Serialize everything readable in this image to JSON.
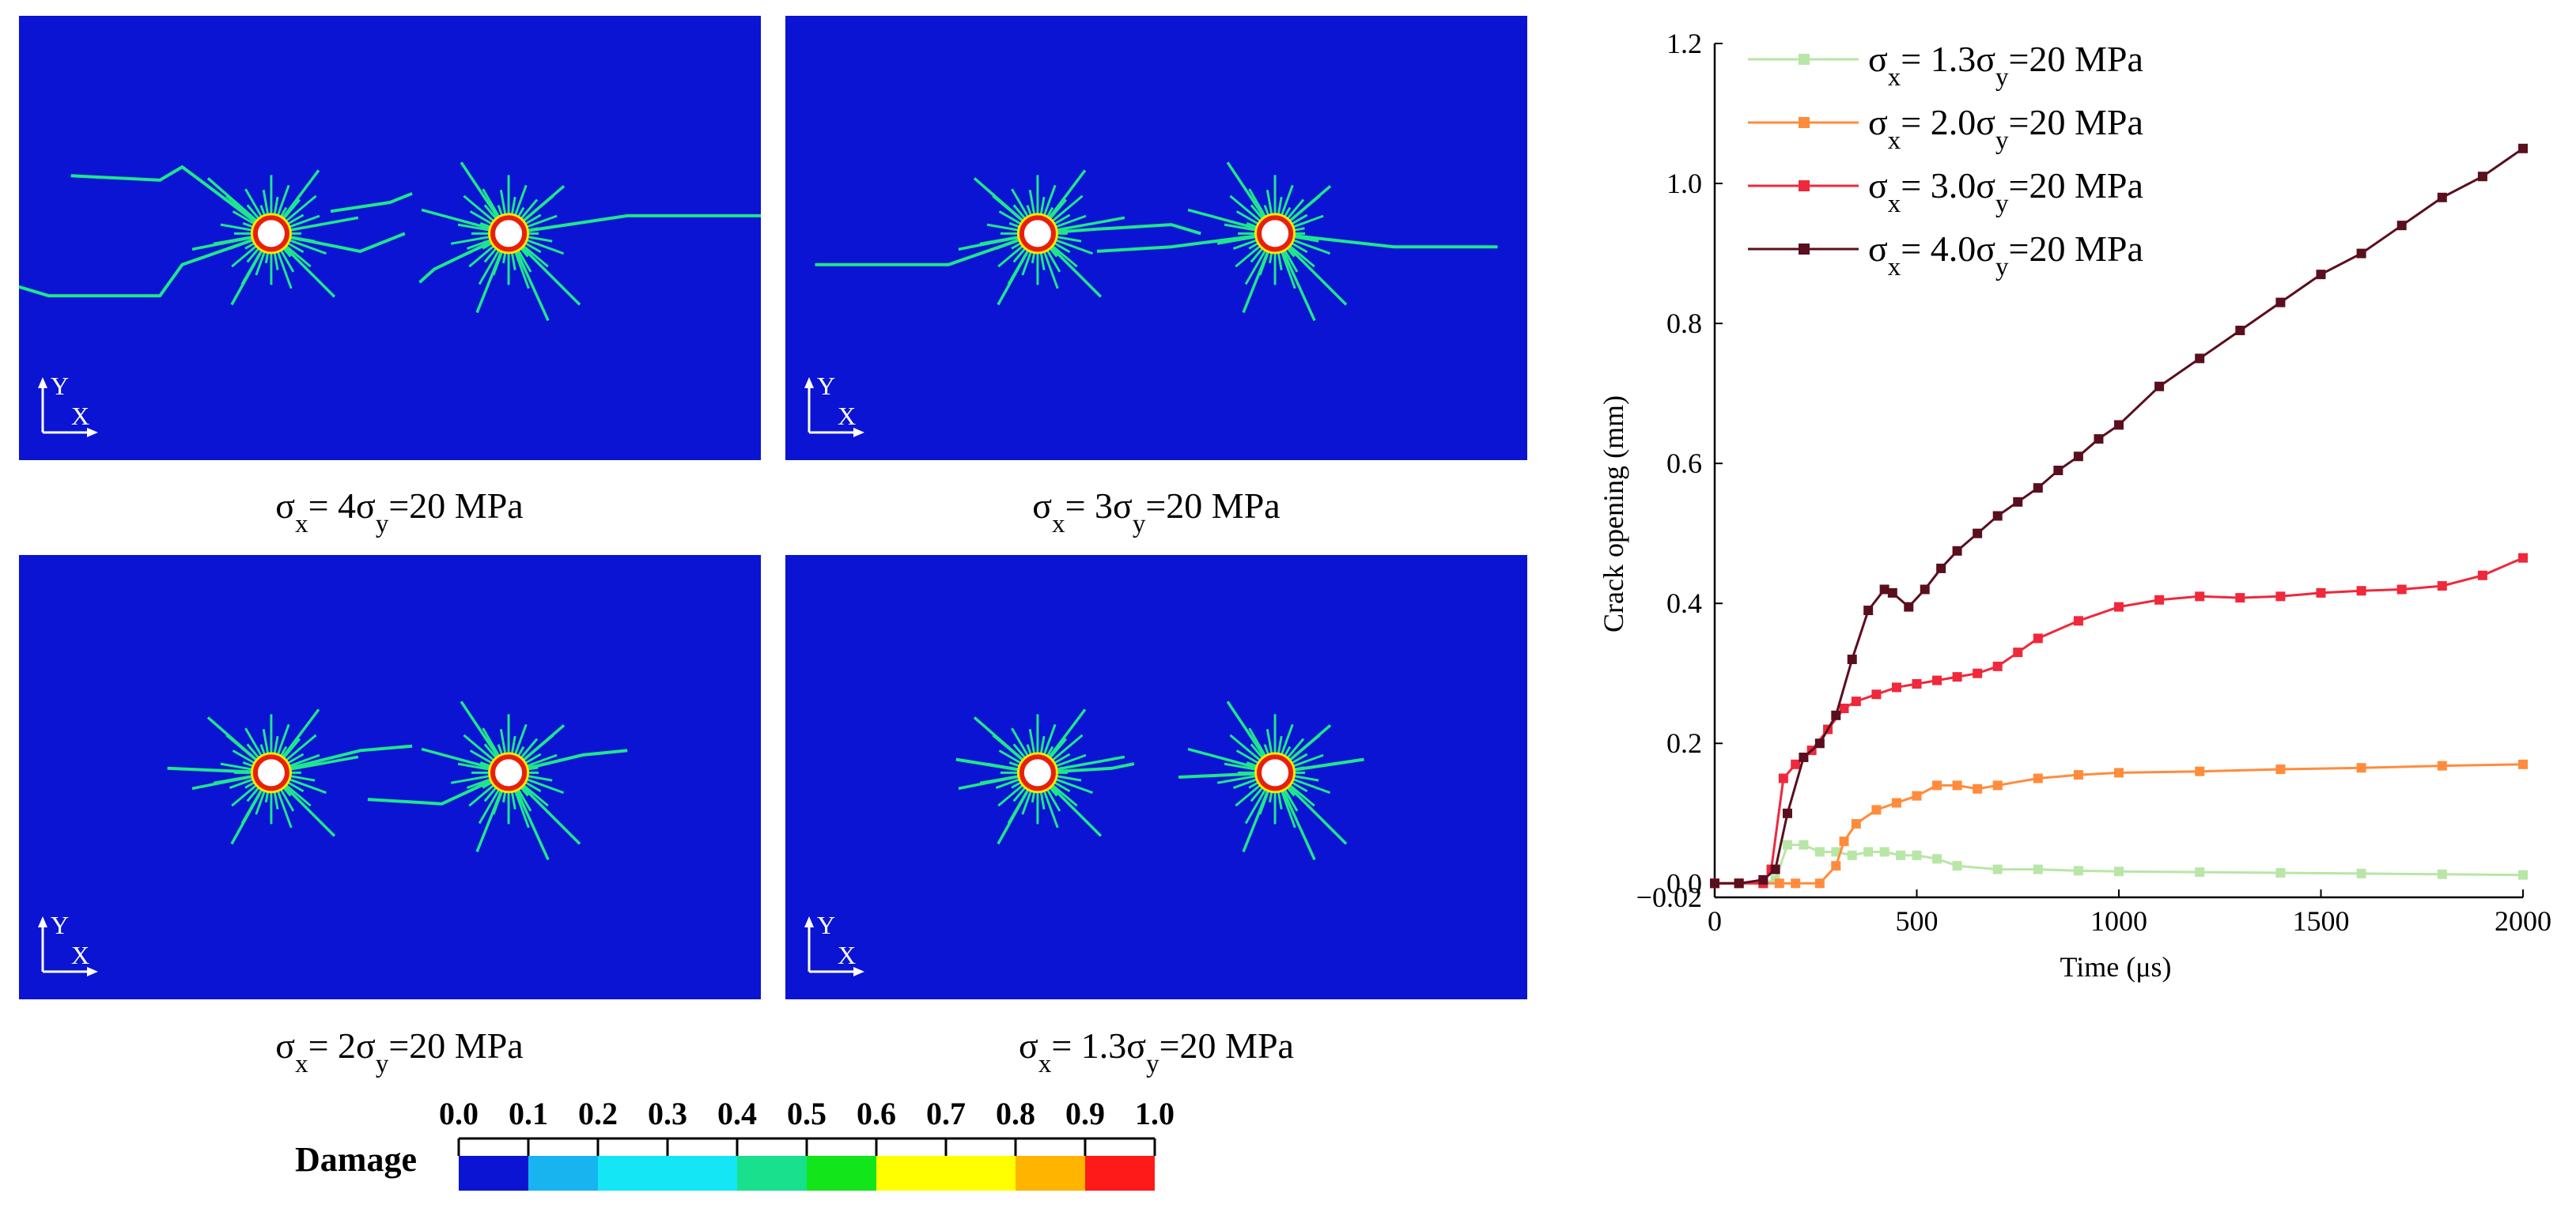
{
  "panels": [
    {
      "caption_prefix": "σ",
      "caption_sub1": "x",
      "caption_mid": "= 4σ",
      "caption_sub2": "y",
      "caption_suffix": "=20 MPa",
      "axis_y": "Y",
      "axis_x": "X",
      "background": "#0a14d2"
    },
    {
      "caption_prefix": "σ",
      "caption_sub1": "x",
      "caption_mid": "= 3σ",
      "caption_sub2": "y",
      "caption_suffix": "=20 MPa",
      "axis_y": "Y",
      "axis_x": "X",
      "background": "#0a14d2"
    },
    {
      "caption_prefix": "σ",
      "caption_sub1": "x",
      "caption_mid": "= 2σ",
      "caption_sub2": "y",
      "caption_suffix": "=20 MPa",
      "axis_y": "Y",
      "axis_x": "X",
      "background": "#0a14d2"
    },
    {
      "caption_prefix": "σ",
      "caption_sub1": "x",
      "caption_mid": "= 1.3σ",
      "caption_sub2": "y",
      "caption_suffix": "=20 MPa",
      "axis_y": "Y",
      "axis_x": "X",
      "background": "#0a14d2"
    }
  ],
  "colorbar": {
    "title": "Damage",
    "ticks": [
      "0.0",
      "0.1",
      "0.2",
      "0.3",
      "0.4",
      "0.5",
      "0.6",
      "0.7",
      "0.8",
      "0.9",
      "1.0"
    ],
    "colors": [
      "#0a14d2",
      "#18b4f0",
      "#14e6f5",
      "#14e6f5",
      "#18e08c",
      "#12e61a",
      "#ffff00",
      "#ffff00",
      "#ffb400",
      "#ff1a1a"
    ]
  },
  "chart_data": {
    "type": "line",
    "title": "",
    "xlabel": "Time (μs)",
    "ylabel": "Crack opening (mm)",
    "xlim": [
      0,
      2000
    ],
    "ylim": [
      -0.02,
      1.2
    ],
    "xticks": [
      0,
      500,
      1000,
      1500,
      2000
    ],
    "xtick_labels": [
      "0",
      "500",
      "1000",
      "1500",
      "2000"
    ],
    "yticks": [
      -0.02,
      0.0,
      0.2,
      0.4,
      0.6,
      0.8,
      1.0,
      1.2
    ],
    "ytick_labels": [
      "−0.02",
      "0.0",
      "0.2",
      "0.4",
      "0.6",
      "0.8",
      "1.0",
      "1.2"
    ],
    "legend_position": "top-left",
    "series": [
      {
        "name": "σx= 1.3σy=20 MPa",
        "legend_prefix": "σ",
        "legend_sub1": "x",
        "legend_mid": "= 1.3σ",
        "legend_sub2": "y",
        "legend_suffix": "=20 MPa",
        "color": "#b8e6a6",
        "x": [
          0,
          60,
          120,
          150,
          180,
          220,
          260,
          300,
          340,
          380,
          420,
          460,
          500,
          550,
          600,
          700,
          800,
          900,
          1000,
          1200,
          1400,
          1600,
          1800,
          2000
        ],
        "y": [
          0.0,
          0.0,
          0.0,
          0.005,
          0.055,
          0.055,
          0.045,
          0.045,
          0.04,
          0.045,
          0.045,
          0.04,
          0.04,
          0.035,
          0.025,
          0.02,
          0.02,
          0.018,
          0.017,
          0.016,
          0.015,
          0.014,
          0.013,
          0.012
        ]
      },
      {
        "name": "σx= 2.0σy=20 MPa",
        "legend_prefix": "σ",
        "legend_sub1": "x",
        "legend_mid": "= 2.0σ",
        "legend_sub2": "y",
        "legend_suffix": "=20 MPa",
        "color": "#ff8c3c",
        "x": [
          0,
          60,
          120,
          160,
          200,
          260,
          300,
          320,
          350,
          400,
          450,
          500,
          550,
          600,
          650,
          700,
          800,
          900,
          1000,
          1200,
          1400,
          1600,
          1800,
          2000
        ],
        "y": [
          0.0,
          0.0,
          0.0,
          0.0,
          0.0,
          0.0,
          0.025,
          0.06,
          0.085,
          0.105,
          0.115,
          0.125,
          0.14,
          0.14,
          0.135,
          0.14,
          0.15,
          0.155,
          0.158,
          0.16,
          0.163,
          0.165,
          0.168,
          0.17
        ]
      },
      {
        "name": "σx= 3.0σy=20 MPa",
        "legend_prefix": "σ",
        "legend_sub1": "x",
        "legend_mid": "= 3.0σ",
        "legend_sub2": "y",
        "legend_suffix": "=20 MPa",
        "color": "#f0283c",
        "x": [
          0,
          60,
          120,
          140,
          170,
          200,
          240,
          280,
          320,
          350,
          400,
          450,
          500,
          550,
          600,
          650,
          700,
          750,
          800,
          900,
          1000,
          1100,
          1200,
          1300,
          1400,
          1500,
          1600,
          1700,
          1800,
          1900,
          2000
        ],
        "y": [
          0.0,
          0.0,
          0.0,
          0.02,
          0.15,
          0.17,
          0.19,
          0.22,
          0.25,
          0.26,
          0.27,
          0.28,
          0.285,
          0.29,
          0.295,
          0.3,
          0.31,
          0.33,
          0.35,
          0.375,
          0.395,
          0.405,
          0.41,
          0.408,
          0.41,
          0.415,
          0.418,
          0.42,
          0.425,
          0.44,
          0.465
        ]
      },
      {
        "name": "σx= 4.0σy=20 MPa",
        "legend_prefix": "σ",
        "legend_sub1": "x",
        "legend_mid": "= 4.0σ",
        "legend_sub2": "y",
        "legend_suffix": "=20 MPa",
        "color": "#5a0f1e",
        "x": [
          0,
          60,
          120,
          150,
          180,
          220,
          260,
          300,
          340,
          380,
          420,
          440,
          480,
          520,
          560,
          600,
          650,
          700,
          750,
          800,
          850,
          900,
          950,
          1000,
          1100,
          1200,
          1300,
          1400,
          1500,
          1600,
          1700,
          1800,
          1900,
          2000
        ],
        "y": [
          0.0,
          0.0,
          0.005,
          0.02,
          0.1,
          0.18,
          0.2,
          0.24,
          0.32,
          0.39,
          0.42,
          0.415,
          0.395,
          0.42,
          0.45,
          0.475,
          0.5,
          0.525,
          0.545,
          0.565,
          0.59,
          0.61,
          0.635,
          0.655,
          0.71,
          0.75,
          0.79,
          0.83,
          0.87,
          0.9,
          0.94,
          0.98,
          1.01,
          1.05
        ]
      }
    ]
  }
}
